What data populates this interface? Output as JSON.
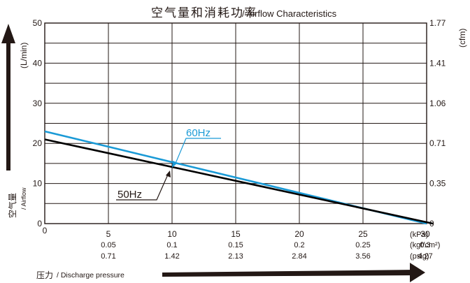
{
  "chart_data": {
    "type": "line",
    "title": "空气量和消耗功率",
    "subtitle": "/ Airflow Characteristics",
    "x_unit_labels": [
      "(kPa)",
      "(kgf/cm²)",
      "(psig)"
    ],
    "x_ticks_kpa": [
      "5",
      "10",
      "15",
      "20",
      "25",
      "30"
    ],
    "x_ticks_kgf": [
      "0.05",
      "0.1",
      "0.15",
      "0.2",
      "0.25",
      "0.3"
    ],
    "x_ticks_psig": [
      "0.71",
      "1.42",
      "2.13",
      "2.84",
      "3.56",
      "4.27"
    ],
    "x_origin_label": "0",
    "xlim": [
      0,
      30
    ],
    "ylim": [
      0,
      50
    ],
    "y_ticks_left": [
      "0",
      "10",
      "20",
      "30",
      "40",
      "50"
    ],
    "y_left_unit": "(L/min)",
    "y_ticks_right": [
      "0",
      "0.35",
      "0.71",
      "1.06",
      "1.41",
      "1.77"
    ],
    "y_right_unit": "(cfm)",
    "y_axis_label_cn": "空气量",
    "y_axis_label_en": "/ Airflow",
    "x_axis_label_cn": "压力",
    "x_axis_label_en": "/ Discharge pressure",
    "grid": true,
    "series": [
      {
        "name": "60Hz",
        "color": "#1a9ad6",
        "x": [
          0,
          30
        ],
        "y": [
          23,
          0
        ]
      },
      {
        "name": "50Hz",
        "color": "#000000",
        "x": [
          0,
          30.5
        ],
        "y": [
          21,
          0
        ]
      }
    ]
  }
}
